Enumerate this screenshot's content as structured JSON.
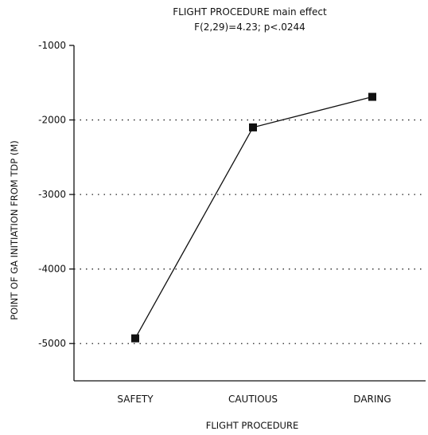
{
  "chart_data": {
    "type": "line",
    "title": "FLIGHT PROCEDURE main effect",
    "subtitle": "F(2,29)=4.23; p<.0244",
    "xlabel": "FLIGHT PROCEDURE",
    "ylabel": "POINT OF GA INITIATION FROM TDP (M)",
    "categories": [
      "SAFETY",
      "CAUTIOUS",
      "DARING"
    ],
    "series": [
      {
        "values": [
          -4930,
          -2100,
          -1690
        ]
      }
    ],
    "ylim": [
      -5500,
      -1000
    ],
    "yticks": [
      -1000,
      -2000,
      -3000,
      -4000,
      -5000
    ],
    "ytick_labels": [
      "-1000",
      "-2000",
      "-3000",
      "-4000",
      "-5000"
    ],
    "grid": "horizontal dotted",
    "marker": "square"
  }
}
